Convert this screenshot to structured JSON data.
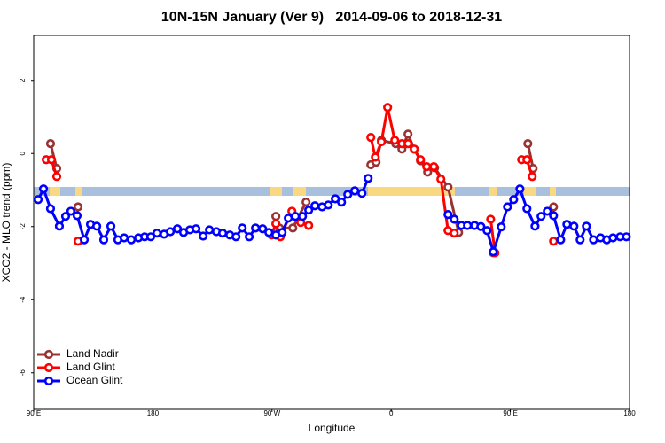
{
  "chart_data": {
    "type": "line",
    "title": "10N-15N January (Ver 9)   2014-09-06 to 2018-12-31",
    "x_label": "Longitude",
    "y_label": "XCO2 - MLO trend (ppm)",
    "xlim": [
      90,
      540
    ],
    "ylim": [
      -7.0,
      3.23
    ],
    "xticks": [
      {
        "value": 90,
        "label": "90 E"
      },
      180,
      {
        "value": 270,
        "label": "90 W"
      },
      {
        "value": 360,
        "label": "0"
      },
      {
        "value": 450,
        "label": "90 E"
      },
      {
        "value": 540,
        "label": "180"
      }
    ],
    "yticks": [
      2,
      0,
      -2,
      -4,
      -6
    ],
    "legend": "bottomleft",
    "series": [
      {
        "name": "Land Nadir",
        "color": "#993333",
        "x": [
          102.7,
          107.4,
          null,
          123.5,
          null,
          272.9,
          275.6,
          285.7,
          295.7,
          null,
          344.6,
          348.6,
          352.6,
          363.4,
          368.1,
          372.7,
          377.4,
          382.1,
          387.5,
          392.8,
          402.9,
          410.9,
          null,
          437.1,
          null,
          463.2,
          467.2,
          null,
          482.6
        ],
        "values": [
          0.27,
          -0.41,
          null,
          -1.46,
          null,
          -1.72,
          -2.04,
          -2.04,
          -1.33,
          null,
          -0.31,
          -0.24,
          0.36,
          0.27,
          0.12,
          0.53,
          0.12,
          -0.2,
          -0.51,
          -0.39,
          -0.92,
          -2.16,
          null,
          -2.72,
          null,
          0.27,
          -0.41,
          null,
          -1.46
        ]
      },
      {
        "name": "Land Glint",
        "color": "#ff0000",
        "x": [
          99.4,
          103.4,
          107.4,
          null,
          123.5,
          null,
          269.6,
          272.9,
          276.3,
          285.0,
          291.7,
          297.7,
          null,
          344.6,
          348.0,
          352.6,
          357.3,
          362.7,
          368.1,
          372.7,
          377.4,
          382.1,
          386.8,
          392.2,
          397.5,
          402.9,
          407.6,
          null,
          435.1,
          438.4,
          null,
          458.5,
          462.5,
          466.5,
          null,
          482.6
        ],
        "values": [
          -0.17,
          -0.17,
          -0.63,
          null,
          -2.4,
          null,
          -2.23,
          -1.92,
          -2.28,
          -1.58,
          -1.89,
          -1.97,
          null,
          0.44,
          -0.1,
          0.32,
          1.26,
          0.36,
          0.27,
          0.27,
          0.12,
          -0.17,
          -0.36,
          -0.36,
          -0.7,
          -2.11,
          -2.18,
          null,
          -1.8,
          -2.72,
          null,
          -0.17,
          -0.17,
          -0.63,
          null,
          -2.4
        ]
      },
      {
        "name": "Ocean Glint",
        "color": "#0000ff",
        "x": [
          93.4,
          97.4,
          102.7,
          109.4,
          114.1,
          118.1,
          122.8,
          128.2,
          132.9,
          137.6,
          142.9,
          148.3,
          153.6,
          158.3,
          163.7,
          169.1,
          173.8,
          178.4,
          183.1,
          188.5,
          193.2,
          198.5,
          203.2,
          207.9,
          212.6,
          218.0,
          222.7,
          228.0,
          232.7,
          238.1,
          242.8,
          247.5,
          252.8,
          257.5,
          262.9,
          267.6,
          272.9,
          277.6,
          282.3,
          287.7,
          293.0,
          297.7,
          302.4,
          307.8,
          312.5,
          317.8,
          322.5,
          327.2,
          332.5,
          337.9,
          342.6,
          null,
          402.9,
          407.6,
          413.0,
          417.6,
          423.0,
          427.7,
          432.4,
          437.1,
          443.1,
          447.8,
          452.5,
          457.2,
          462.5,
          468.6,
          473.2,
          477.9,
          482.6,
          488.0,
          492.7,
          498.0,
          502.7,
          507.4,
          512.8,
          518.1,
          522.8,
          527.5,
          532.9,
          537.6
        ],
        "values": [
          -1.26,
          -0.97,
          -1.51,
          -1.99,
          -1.72,
          -1.58,
          -1.7,
          -2.36,
          -1.94,
          -1.99,
          -2.36,
          -1.99,
          -2.36,
          -2.31,
          -2.36,
          -2.31,
          -2.28,
          -2.28,
          -2.18,
          -2.21,
          -2.14,
          -2.06,
          -2.16,
          -2.09,
          -2.06,
          -2.26,
          -2.09,
          -2.14,
          -2.18,
          -2.23,
          -2.28,
          -2.04,
          -2.28,
          -2.04,
          -2.06,
          -2.16,
          -2.23,
          -2.16,
          -1.77,
          -1.72,
          -1.72,
          -1.55,
          -1.43,
          -1.46,
          -1.41,
          -1.24,
          -1.33,
          -1.12,
          -1.02,
          -1.09,
          -0.68,
          null,
          -1.67,
          -1.8,
          -1.97,
          -1.97,
          -1.97,
          -2.0,
          -2.11,
          -2.69,
          -2.01,
          -1.46,
          -1.26,
          -0.97,
          -1.51,
          -1.99,
          -1.72,
          -1.58,
          -1.7,
          -2.36,
          -1.94,
          -1.99,
          -2.36,
          -1.99,
          -2.36,
          -2.31,
          -2.36,
          -2.31,
          -2.28,
          -2.28
        ]
      }
    ]
  }
}
